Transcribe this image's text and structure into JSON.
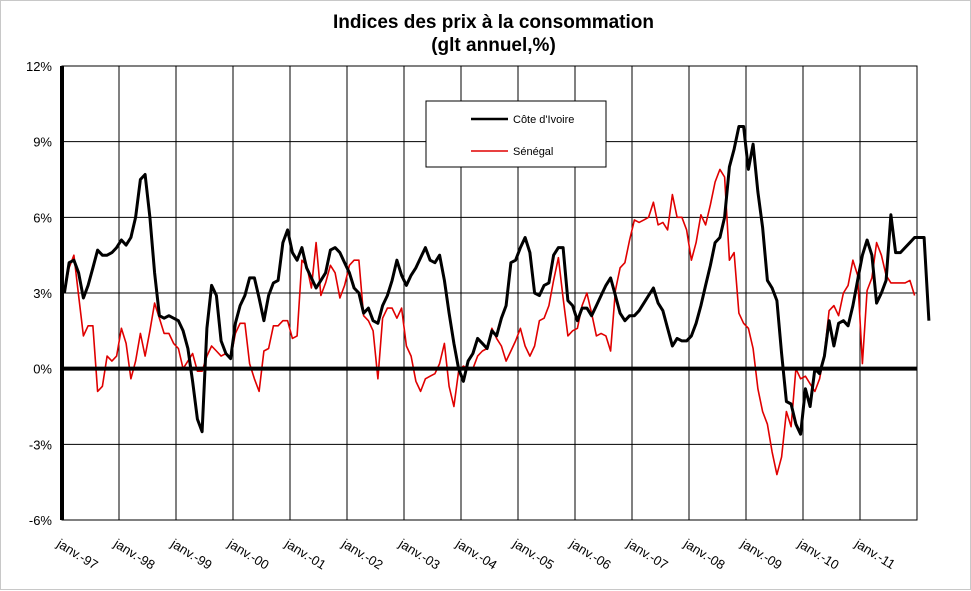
{
  "chart_data": {
    "type": "line",
    "title": "Indices des prix à la consommation",
    "subtitle": "(glt annuel,%)",
    "xlabel": "",
    "ylabel": "",
    "ylim": [
      -6,
      12
    ],
    "yticks": [
      "12%",
      "9%",
      "6%",
      "3%",
      "0%",
      "-3%",
      "-6%"
    ],
    "ytick_values": [
      12,
      9,
      6,
      3,
      0,
      -3,
      -6
    ],
    "xticks": [
      "janv.-97",
      "janv.-98",
      "janv.-99",
      "janv.-00",
      "janv.-01",
      "janv.-02",
      "janv.-03",
      "janv.-04",
      "janv.-05",
      "janv.-06",
      "janv.-07",
      "janv.-08",
      "janv.-09",
      "janv.-10",
      "janv.-11"
    ],
    "x_start": "janv.-97",
    "x_end": "déc.-11",
    "grid": true,
    "legend_position": "top-center",
    "series": [
      {
        "name": "Côte d'Ivoire",
        "color": "#000000",
        "values": [
          3.0,
          4.2,
          4.3,
          3.8,
          2.8,
          3.3,
          4.0,
          4.7,
          4.5,
          4.5,
          4.6,
          4.8,
          5.1,
          4.9,
          5.2,
          6.0,
          7.5,
          7.7,
          6.0,
          3.8,
          2.1,
          2.0,
          2.1,
          2.0,
          1.9,
          1.5,
          0.8,
          -0.5,
          -2.0,
          -2.5,
          1.6,
          3.3,
          2.9,
          1.1,
          0.6,
          0.4,
          1.8,
          2.5,
          2.9,
          3.6,
          3.6,
          2.8,
          1.9,
          2.9,
          3.4,
          3.5,
          5.0,
          5.5,
          4.6,
          4.3,
          4.8,
          4.0,
          3.6,
          3.2,
          3.5,
          3.8,
          4.7,
          4.8,
          4.6,
          4.2,
          3.8,
          3.2,
          3.0,
          2.2,
          2.4,
          1.9,
          1.8,
          2.5,
          2.9,
          3.5,
          4.3,
          3.7,
          3.3,
          3.7,
          4.0,
          4.4,
          4.8,
          4.3,
          4.2,
          4.5,
          3.5,
          2.2,
          1.0,
          0.0,
          -0.5,
          0.3,
          0.6,
          1.2,
          1.0,
          0.8,
          1.5,
          1.3,
          2.0,
          2.5,
          4.2,
          4.3,
          4.8,
          5.2,
          4.6,
          3.0,
          2.9,
          3.3,
          3.4,
          4.5,
          4.8,
          4.8,
          2.7,
          2.5,
          1.9,
          2.4,
          2.4,
          2.1,
          2.5,
          2.9,
          3.3,
          3.6,
          2.9,
          2.2,
          1.9,
          2.1,
          2.1,
          2.3,
          2.6,
          2.9,
          3.2,
          2.6,
          2.3,
          1.6,
          0.9,
          1.2,
          1.1,
          1.1,
          1.3,
          1.8,
          2.5,
          3.3,
          4.1,
          5.0,
          5.2,
          6.0,
          8.0,
          8.7,
          9.6,
          9.6,
          7.9,
          8.9,
          7.0,
          5.6,
          3.5,
          3.2,
          2.7,
          0.6,
          -1.3,
          -1.4,
          -2.2,
          -2.6,
          -0.8,
          -1.5,
          0.0,
          -0.2,
          0.5,
          1.9,
          0.9,
          1.8,
          1.9,
          1.7,
          2.5,
          3.5,
          4.5,
          5.1,
          4.5,
          2.6,
          3.0,
          3.5,
          6.1,
          4.6,
          4.6,
          4.8,
          5.0,
          5.2,
          5.2,
          5.2,
          1.9
        ]
      },
      {
        "name": "Sénégal",
        "color": "#e00000",
        "values": [
          3.0,
          4.0,
          4.5,
          2.9,
          1.3,
          1.7,
          1.7,
          -0.9,
          -0.7,
          0.5,
          0.3,
          0.5,
          1.6,
          1.0,
          -0.4,
          0.3,
          1.4,
          0.5,
          1.5,
          2.6,
          2.0,
          1.4,
          1.4,
          1.0,
          0.8,
          0.0,
          0.3,
          0.6,
          -0.1,
          -0.1,
          0.5,
          0.9,
          0.7,
          0.5,
          0.6,
          0.4,
          1.4,
          1.8,
          1.8,
          0.2,
          -0.4,
          -0.9,
          0.7,
          0.8,
          1.7,
          1.7,
          1.9,
          1.9,
          1.2,
          1.3,
          4.3,
          4.1,
          3.2,
          5.0,
          2.9,
          3.4,
          4.1,
          3.8,
          2.8,
          3.3,
          4.1,
          4.3,
          4.3,
          2.1,
          1.9,
          1.5,
          -0.4,
          2.0,
          2.4,
          2.4,
          2.0,
          2.4,
          0.9,
          0.5,
          -0.5,
          -0.9,
          -0.4,
          -0.3,
          -0.2,
          0.2,
          1.0,
          -0.7,
          -1.5,
          -0.1,
          0.1,
          0.0,
          0.0,
          0.5,
          0.7,
          0.8,
          1.6,
          1.2,
          0.9,
          0.3,
          0.7,
          1.1,
          1.6,
          0.9,
          0.5,
          0.9,
          1.9,
          2.0,
          2.5,
          3.5,
          4.4,
          2.8,
          1.3,
          1.5,
          1.6,
          2.5,
          3.0,
          2.2,
          1.3,
          1.4,
          1.3,
          0.7,
          3.1,
          4.0,
          4.2,
          5.1,
          5.9,
          5.8,
          5.9,
          6.0,
          6.6,
          5.7,
          5.8,
          5.5,
          6.9,
          6.0,
          6.0,
          5.5,
          4.3,
          5.0,
          6.1,
          5.7,
          6.5,
          7.4,
          7.9,
          7.6,
          4.3,
          4.6,
          2.2,
          1.8,
          1.6,
          0.8,
          -0.8,
          -1.7,
          -2.2,
          -3.3,
          -4.2,
          -3.5,
          -1.7,
          -2.3,
          0.0,
          -0.4,
          -0.3,
          -0.6,
          -0.9,
          -0.4,
          0.6,
          2.3,
          2.5,
          2.1,
          3.0,
          3.3,
          4.3,
          3.7,
          0.2,
          3.1,
          3.6,
          5.0,
          4.5,
          3.7,
          3.4,
          3.4,
          3.4,
          3.4,
          3.5,
          2.9
        ]
      }
    ]
  }
}
